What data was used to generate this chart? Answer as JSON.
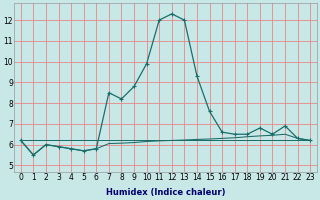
{
  "xlabel": "Humidex (Indice chaleur)",
  "xlim": [
    -0.5,
    23.5
  ],
  "ylim": [
    4.7,
    12.8
  ],
  "yticks": [
    5,
    6,
    7,
    8,
    9,
    10,
    11,
    12
  ],
  "xticks": [
    0,
    1,
    2,
    3,
    4,
    5,
    6,
    7,
    8,
    9,
    10,
    11,
    12,
    13,
    14,
    15,
    16,
    17,
    18,
    19,
    20,
    21,
    22,
    23
  ],
  "bg_color": "#c8e8e8",
  "line_color": "#1a6e6a",
  "grid_color_major": "#e88888",
  "grid_color_minor": "#f4c0c0",
  "series_main": {
    "x": [
      0,
      1,
      2,
      3,
      4,
      5,
      6,
      7,
      8,
      9,
      10,
      11,
      12,
      13,
      14,
      15,
      16,
      17,
      18,
      19,
      20,
      21,
      22,
      23
    ],
    "y": [
      6.2,
      5.5,
      6.0,
      5.9,
      5.8,
      5.7,
      5.8,
      8.5,
      8.2,
      8.8,
      9.9,
      12.0,
      12.3,
      12.0,
      9.3,
      7.6,
      6.6,
      6.5,
      6.5,
      6.8,
      6.5,
      6.9,
      6.3,
      6.2
    ]
  },
  "series_flat1": {
    "x": [
      0,
      1,
      2,
      3,
      4,
      5,
      6,
      7,
      8,
      9,
      10,
      11,
      12,
      13,
      14,
      15,
      16,
      17,
      18,
      19,
      20,
      21,
      22,
      23
    ],
    "y": [
      6.2,
      5.5,
      6.0,
      5.9,
      5.8,
      5.7,
      5.8,
      6.05,
      6.07,
      6.1,
      6.15,
      6.18,
      6.2,
      6.22,
      6.25,
      6.27,
      6.3,
      6.33,
      6.38,
      6.42,
      6.45,
      6.5,
      6.3,
      6.2
    ]
  },
  "series_flat2": {
    "x": [
      0,
      23
    ],
    "y": [
      6.2,
      6.2
    ]
  },
  "series_flat3": {
    "x": [
      0,
      23
    ],
    "y": [
      6.2,
      6.2
    ]
  },
  "xlabel_color": "#00006e",
  "xlabel_fontsize": 6,
  "tick_fontsize": 5.5,
  "linewidth": 0.9,
  "markersize": 2.5
}
